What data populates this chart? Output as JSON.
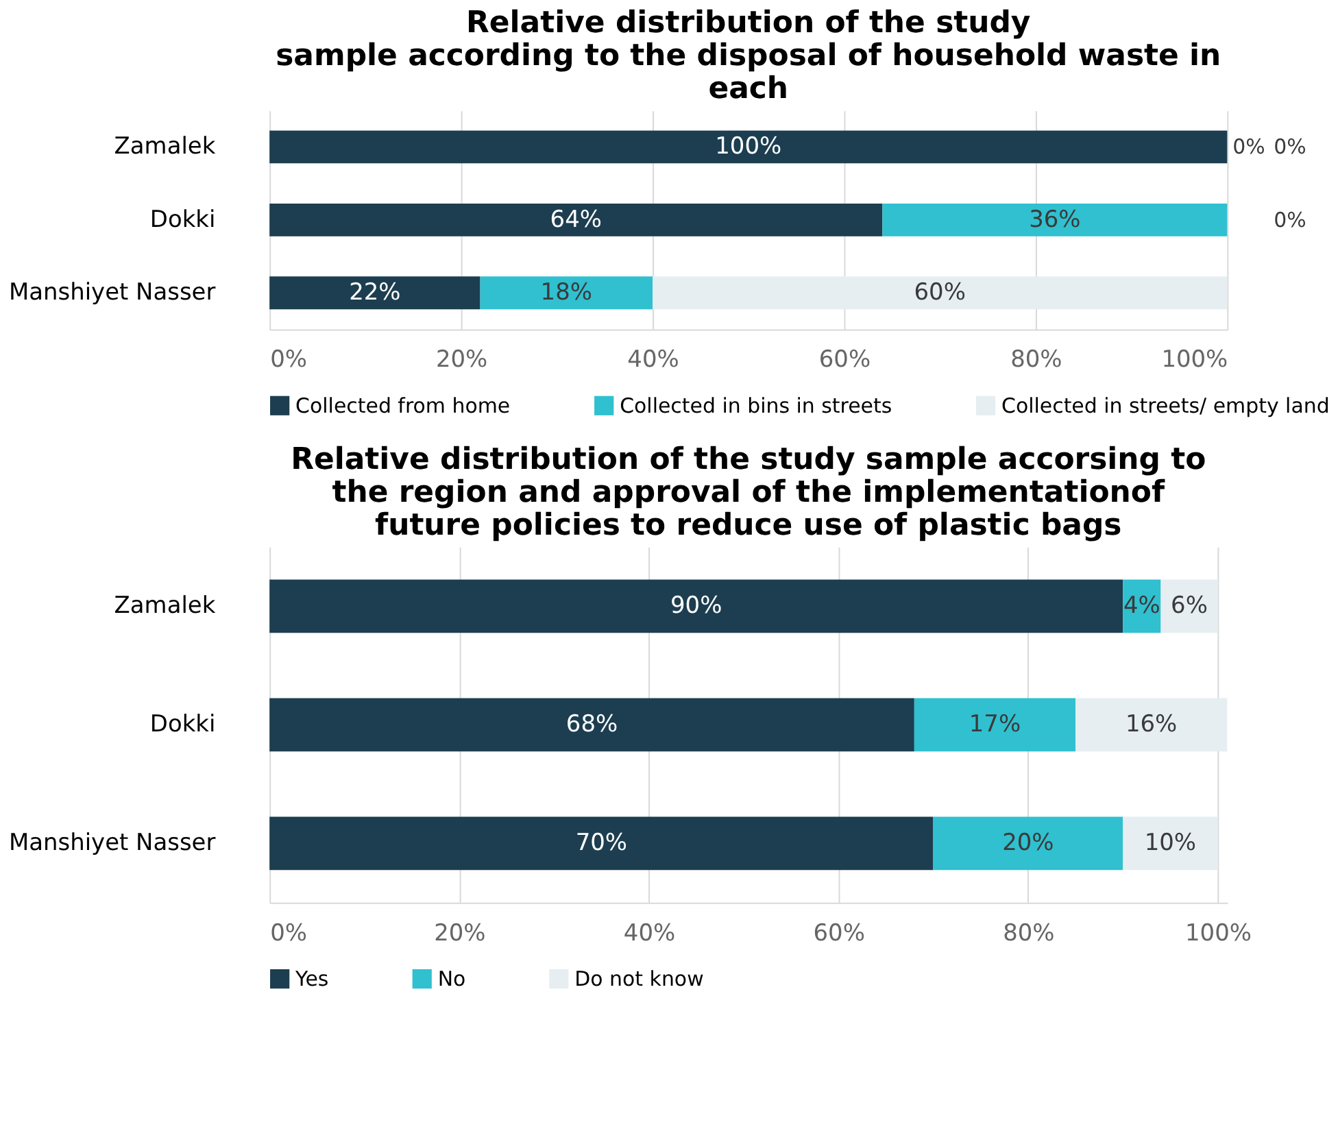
{
  "chart_data": [
    {
      "type": "bar",
      "orientation": "horizontal",
      "stacked": true,
      "title": [
        "Relative distribution of the study",
        "sample according to the disposal of household waste in",
        "each"
      ],
      "categories": [
        "Zamalek",
        "Dokki",
        "Manshiyet Nasser"
      ],
      "series": [
        {
          "name": "Collected from home",
          "color": "#1c3e50",
          "values": [
            100,
            64,
            22
          ],
          "value_labels": [
            "100%",
            "64%",
            "22%"
          ]
        },
        {
          "name": "Collected in bins in streets",
          "color": "#30c0d0",
          "values": [
            0,
            36,
            18
          ],
          "value_labels": [
            "0%",
            "36%",
            "18%"
          ]
        },
        {
          "name": "Collected in streets/ empty land",
          "color": "#e6eef2",
          "values": [
            0,
            0,
            60
          ],
          "value_labels": [
            "0%",
            "0%",
            "60%"
          ]
        }
      ],
      "xlim": [
        0,
        100
      ],
      "xticks": [
        {
          "value": 0,
          "label": "0%"
        },
        {
          "value": 20,
          "label": "20%"
        },
        {
          "value": 40,
          "label": "40%"
        },
        {
          "value": 60,
          "label": "60%"
        },
        {
          "value": 80,
          "label": "80%"
        },
        {
          "value": 100,
          "label": "100%"
        }
      ],
      "grid": "x",
      "legend": "bottom"
    },
    {
      "type": "bar",
      "orientation": "horizontal",
      "stacked": true,
      "title": [
        "Relative distribution of the study sample accorsing to",
        "the region and approval of the implementationof",
        "future policies to reduce use of plastic bags"
      ],
      "categories": [
        "Zamalek",
        "Dokki",
        "Manshiyet Nasser"
      ],
      "series": [
        {
          "name": "Yes",
          "color": "#1c3e50",
          "values": [
            90,
            68,
            70
          ],
          "value_labels": [
            "90%",
            "68%",
            "70%"
          ]
        },
        {
          "name": "No",
          "color": "#30c0d0",
          "values": [
            4,
            17,
            20
          ],
          "value_labels": [
            "4%",
            "17%",
            "20%"
          ]
        },
        {
          "name": "Do not know",
          "color": "#e6eef2",
          "values": [
            6,
            16,
            10
          ],
          "value_labels": [
            "6%",
            "16%",
            "10%"
          ]
        }
      ],
      "xlim": [
        0,
        101
      ],
      "xticks": [
        {
          "value": 0,
          "label": "0%"
        },
        {
          "value": 20,
          "label": "20%"
        },
        {
          "value": 40,
          "label": "40%"
        },
        {
          "value": 60,
          "label": "60%"
        },
        {
          "value": 80,
          "label": "80%"
        },
        {
          "value": 100,
          "label": "100%"
        }
      ],
      "grid": "x",
      "legend": "bottom"
    }
  ]
}
